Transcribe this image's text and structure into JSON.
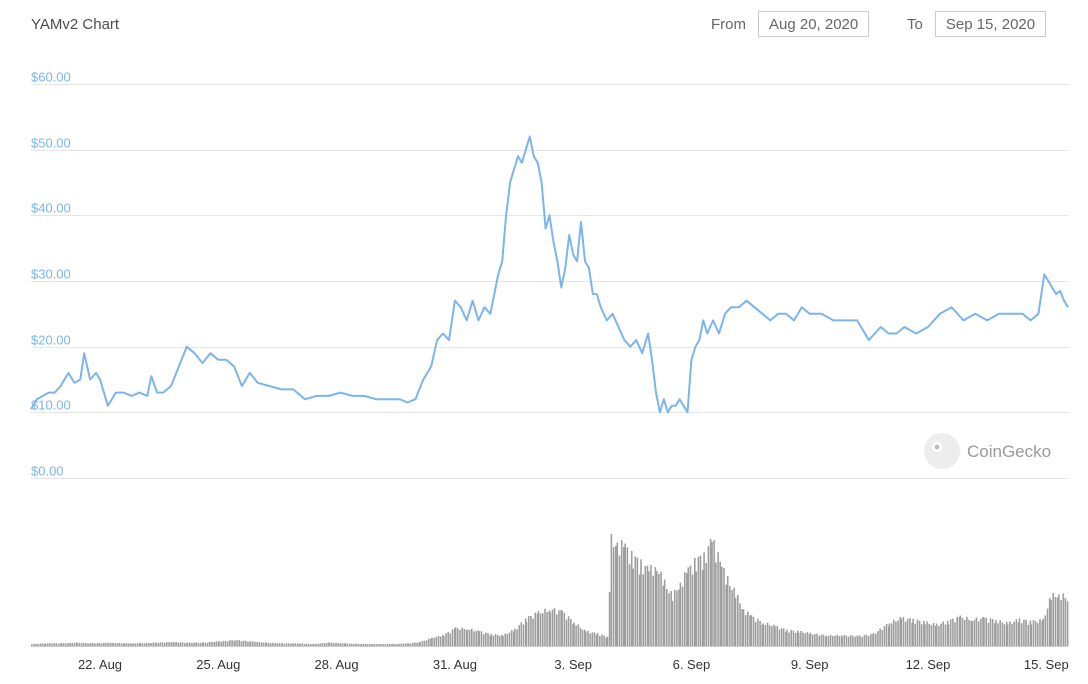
{
  "header": {
    "title": "YAMv2 Chart",
    "from_label": "From",
    "from_value": "Aug 20, 2020",
    "to_label": "To",
    "to_value": "Sep 15, 2020"
  },
  "watermark": {
    "text": "CoinGecko"
  },
  "colors": {
    "price": "#7cb5ec",
    "volume": "#9e9e9e",
    "grid": "#e6e6e6"
  },
  "chart_data": [
    {
      "type": "line",
      "name": "price",
      "ylim": [
        0,
        60
      ],
      "yticks": [
        "$60.00",
        "$50.00",
        "$40.00",
        "$30.00",
        "$20.00",
        "$10.00",
        "$0.00"
      ],
      "ytick_values": [
        60,
        50,
        40,
        30,
        20,
        10,
        0
      ],
      "xticks": [
        "22. Aug",
        "25. Aug",
        "28. Aug",
        "31. Aug",
        "3. Sep",
        "6. Sep",
        "9. Sep",
        "12. Sep",
        "15. Sep"
      ],
      "xtick_days": [
        2,
        5,
        8,
        11,
        14,
        17,
        20,
        23,
        26
      ],
      "xlim": [
        0.25,
        26.55
      ],
      "grid": true,
      "x": [
        0.25,
        0.4,
        0.55,
        0.7,
        0.85,
        1.0,
        1.1,
        1.2,
        1.35,
        1.5,
        1.6,
        1.75,
        1.9,
        2.0,
        2.2,
        2.4,
        2.6,
        2.8,
        3.0,
        3.2,
        3.3,
        3.45,
        3.6,
        3.8,
        4.0,
        4.2,
        4.4,
        4.6,
        4.8,
        5.0,
        5.2,
        5.4,
        5.6,
        5.8,
        6.0,
        6.3,
        6.6,
        6.9,
        7.2,
        7.5,
        7.8,
        8.1,
        8.4,
        8.7,
        9.0,
        9.3,
        9.6,
        9.8,
        10.0,
        10.2,
        10.4,
        10.55,
        10.7,
        10.85,
        11.0,
        11.15,
        11.3,
        11.45,
        11.6,
        11.75,
        11.9,
        12.0,
        12.1,
        12.2,
        12.3,
        12.4,
        12.5,
        12.6,
        12.7,
        12.8,
        12.9,
        13.0,
        13.1,
        13.2,
        13.3,
        13.4,
        13.5,
        13.6,
        13.7,
        13.8,
        13.9,
        14.0,
        14.1,
        14.2,
        14.3,
        14.4,
        14.5,
        14.6,
        14.7,
        14.85,
        15.0,
        15.15,
        15.3,
        15.45,
        15.6,
        15.75,
        15.9,
        16.0,
        16.1,
        16.2,
        16.3,
        16.4,
        16.5,
        16.6,
        16.7,
        16.8,
        16.9,
        17.0,
        17.1,
        17.2,
        17.3,
        17.4,
        17.55,
        17.7,
        17.85,
        18.0,
        18.2,
        18.4,
        18.6,
        18.8,
        19.0,
        19.2,
        19.4,
        19.6,
        19.8,
        20.0,
        20.3,
        20.6,
        20.9,
        21.2,
        21.5,
        21.8,
        22.0,
        22.2,
        22.4,
        22.7,
        23.0,
        23.3,
        23.6,
        23.9,
        24.2,
        24.5,
        24.8,
        25.1,
        25.4,
        25.6,
        25.8,
        25.95,
        26.05,
        26.15,
        26.25,
        26.35,
        26.45,
        26.55
      ],
      "values": [
        10.5,
        12,
        12.5,
        13,
        13,
        14,
        15,
        16,
        14.5,
        15,
        19,
        15,
        16,
        15,
        11,
        13,
        13,
        12.5,
        13,
        12.5,
        15.5,
        13,
        13,
        14,
        17,
        20,
        19,
        17.5,
        19,
        18,
        18,
        17,
        14,
        16,
        14.5,
        14,
        13.5,
        13.5,
        12,
        12.5,
        12.5,
        13,
        12.5,
        12.5,
        12,
        12,
        12,
        11.5,
        12,
        15,
        17,
        21,
        22,
        21,
        27,
        26,
        24,
        27,
        24,
        26,
        25,
        28,
        31,
        33,
        40,
        45,
        47,
        49,
        48,
        50,
        52,
        49,
        48,
        45,
        38,
        40,
        36,
        33,
        29,
        32,
        37,
        34,
        33,
        39,
        33,
        32,
        28,
        28,
        26,
        24,
        25,
        23,
        21,
        20,
        21,
        19,
        22,
        18,
        13,
        10,
        12,
        10,
        11,
        11,
        12,
        11,
        10,
        18,
        20,
        21,
        24,
        22,
        24,
        22,
        25,
        26,
        26,
        27,
        26,
        25,
        24,
        25,
        25,
        24,
        26,
        25,
        25,
        24,
        24,
        24,
        21,
        23,
        22,
        22,
        23,
        22,
        23,
        25,
        26,
        24,
        25,
        24,
        25,
        25,
        25,
        24,
        25,
        31,
        30,
        29,
        28,
        28.5,
        27,
        26
      ]
    },
    {
      "type": "bar",
      "name": "volume",
      "xlim": [
        0.25,
        26.55
      ],
      "x": [
        0.25,
        0.6,
        1.0,
        1.4,
        1.8,
        2.2,
        2.6,
        3.0,
        3.4,
        3.8,
        4.2,
        4.6,
        5.0,
        5.4,
        5.8,
        6.2,
        6.6,
        7.0,
        7.4,
        7.8,
        8.2,
        8.6,
        9.0,
        9.4,
        9.8,
        10.1,
        10.4,
        10.7,
        11.0,
        11.3,
        11.6,
        11.9,
        12.2,
        12.5,
        12.8,
        13.1,
        13.4,
        13.7,
        14.0,
        14.3,
        14.6,
        14.85,
        14.95,
        15.1,
        15.3,
        15.5,
        15.7,
        15.9,
        16.1,
        16.3,
        16.5,
        16.7,
        16.9,
        17.1,
        17.3,
        17.5,
        17.6,
        17.75,
        17.9,
        18.1,
        18.3,
        18.5,
        18.8,
        19.1,
        19.4,
        19.7,
        20.0,
        20.4,
        20.8,
        21.2,
        21.6,
        22.0,
        22.3,
        22.6,
        22.9,
        23.2,
        23.5,
        23.8,
        24.1,
        24.4,
        24.7,
        25.0,
        25.3,
        25.6,
        25.9,
        26.1,
        26.3,
        26.55
      ],
      "values": [
        0.3,
        0.4,
        0.4,
        0.5,
        0.4,
        0.5,
        0.4,
        0.4,
        0.5,
        0.6,
        0.5,
        0.5,
        0.7,
        0.9,
        0.7,
        0.5,
        0.4,
        0.4,
        0.3,
        0.5,
        0.4,
        0.3,
        0.3,
        0.3,
        0.4,
        0.6,
        1.2,
        1.7,
        2.7,
        2.6,
        2.2,
        1.8,
        1.6,
        2.5,
        4.2,
        5.0,
        5.6,
        5.2,
        3.6,
        2.2,
        1.9,
        1.4,
        16,
        15.5,
        15,
        13.5,
        12.5,
        11.5,
        12,
        9.5,
        7.5,
        9.5,
        11.5,
        13,
        13.5,
        16,
        14.5,
        12,
        10,
        8,
        5.5,
        4.5,
        3.5,
        3.0,
        2.4,
        2.2,
        1.9,
        1.6,
        1.6,
        1.5,
        1.8,
        3.5,
        4.2,
        4.0,
        3.6,
        3.2,
        3.8,
        4.4,
        4.0,
        4.2,
        3.9,
        3.4,
        4.0,
        3.7,
        3.9,
        7.5,
        7.8,
        7.2
      ]
    }
  ]
}
